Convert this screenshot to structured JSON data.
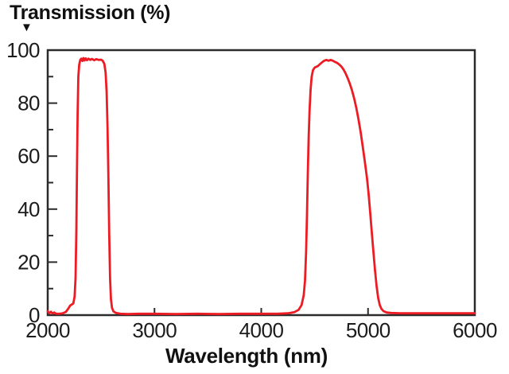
{
  "chart": {
    "title": "Transmission (%)",
    "marker": "▼",
    "xlabel": "Wavelength (nm)"
  },
  "chart_data": {
    "type": "line",
    "title": "Transmission (%)",
    "xlabel": "Wavelength (nm)",
    "ylabel": "Transmission (%)",
    "xlim": [
      2000,
      6000
    ],
    "ylim": [
      0,
      100
    ],
    "x_ticks": [
      2000,
      3000,
      4000,
      5000,
      6000
    ],
    "y_ticks": [
      0,
      20,
      40,
      60,
      80,
      100
    ],
    "y_minor_ticks": [
      10,
      30,
      50,
      70,
      90
    ],
    "grid": false,
    "legend": "none",
    "line_color": "#ed1c24",
    "axis_color": "#2b2b2b",
    "description": "Dual-band optical filter transmission: passband 1 ~2290-2580 nm (~96%), passband 2 ~4420-5090 nm (~95%)",
    "series": [
      {
        "name": "transmission",
        "points": [
          [
            2000,
            1.5
          ],
          [
            2015,
            0.7
          ],
          [
            2030,
            1.3
          ],
          [
            2045,
            0.6
          ],
          [
            2060,
            1.0
          ],
          [
            2080,
            0.5
          ],
          [
            2110,
            0.5
          ],
          [
            2140,
            0.7
          ],
          [
            2170,
            1.2
          ],
          [
            2195,
            2.6
          ],
          [
            2210,
            3.6
          ],
          [
            2225,
            4.0
          ],
          [
            2240,
            4.4
          ],
          [
            2252,
            7
          ],
          [
            2261,
            14
          ],
          [
            2268,
            32
          ],
          [
            2274,
            55
          ],
          [
            2280,
            76
          ],
          [
            2287,
            90
          ],
          [
            2295,
            94.5
          ],
          [
            2305,
            96.3
          ],
          [
            2315,
            96.8
          ],
          [
            2325,
            95.9
          ],
          [
            2335,
            97.0
          ],
          [
            2345,
            96.1
          ],
          [
            2355,
            96.9
          ],
          [
            2368,
            96.2
          ],
          [
            2382,
            96.8
          ],
          [
            2398,
            96.3
          ],
          [
            2415,
            96.7
          ],
          [
            2435,
            96.2
          ],
          [
            2455,
            96.6
          ],
          [
            2478,
            96.3
          ],
          [
            2500,
            96.4
          ],
          [
            2515,
            96.0
          ],
          [
            2530,
            94.8
          ],
          [
            2542,
            91.5
          ],
          [
            2552,
            84
          ],
          [
            2560,
            71
          ],
          [
            2568,
            52
          ],
          [
            2576,
            31
          ],
          [
            2584,
            14
          ],
          [
            2592,
            6
          ],
          [
            2602,
            2.8
          ],
          [
            2615,
            1.4
          ],
          [
            2640,
            0.8
          ],
          [
            2680,
            0.5
          ],
          [
            2750,
            0.4
          ],
          [
            2850,
            0.5
          ],
          [
            3000,
            0.5
          ],
          [
            3200,
            0.4
          ],
          [
            3400,
            0.5
          ],
          [
            3600,
            0.4
          ],
          [
            3800,
            0.5
          ],
          [
            4000,
            0.5
          ],
          [
            4150,
            0.5
          ],
          [
            4250,
            0.7
          ],
          [
            4310,
            1.1
          ],
          [
            4350,
            2.0
          ],
          [
            4378,
            3.8
          ],
          [
            4398,
            7.5
          ],
          [
            4410,
            13
          ],
          [
            4420,
            24
          ],
          [
            4428,
            38
          ],
          [
            4436,
            53
          ],
          [
            4444,
            67
          ],
          [
            4452,
            77
          ],
          [
            4462,
            85
          ],
          [
            4472,
            90
          ],
          [
            4485,
            92.5
          ],
          [
            4500,
            93.4
          ],
          [
            4515,
            93.7
          ],
          [
            4530,
            94.0
          ],
          [
            4550,
            94.7
          ],
          [
            4570,
            95.4
          ],
          [
            4590,
            96.0
          ],
          [
            4610,
            96.3
          ],
          [
            4630,
            96.0
          ],
          [
            4650,
            96.3
          ],
          [
            4670,
            96.0
          ],
          [
            4690,
            95.6
          ],
          [
            4710,
            95.2
          ],
          [
            4730,
            94.6
          ],
          [
            4750,
            93.8
          ],
          [
            4770,
            92.7
          ],
          [
            4790,
            91.2
          ],
          [
            4810,
            89.4
          ],
          [
            4830,
            87.3
          ],
          [
            4850,
            84.8
          ],
          [
            4870,
            81.8
          ],
          [
            4890,
            78.2
          ],
          [
            4910,
            74
          ],
          [
            4930,
            69.2
          ],
          [
            4950,
            63.8
          ],
          [
            4970,
            58
          ],
          [
            4990,
            51.8
          ],
          [
            5005,
            46
          ],
          [
            5020,
            39
          ],
          [
            5035,
            31.5
          ],
          [
            5050,
            24
          ],
          [
            5065,
            17
          ],
          [
            5080,
            11
          ],
          [
            5095,
            6.5
          ],
          [
            5110,
            3.8
          ],
          [
            5125,
            2.4
          ],
          [
            5145,
            1.5
          ],
          [
            5175,
            1.0
          ],
          [
            5220,
            0.8
          ],
          [
            5300,
            0.7
          ],
          [
            5450,
            0.7
          ],
          [
            5600,
            0.7
          ],
          [
            5800,
            0.7
          ],
          [
            6000,
            0.7
          ]
        ]
      }
    ]
  }
}
